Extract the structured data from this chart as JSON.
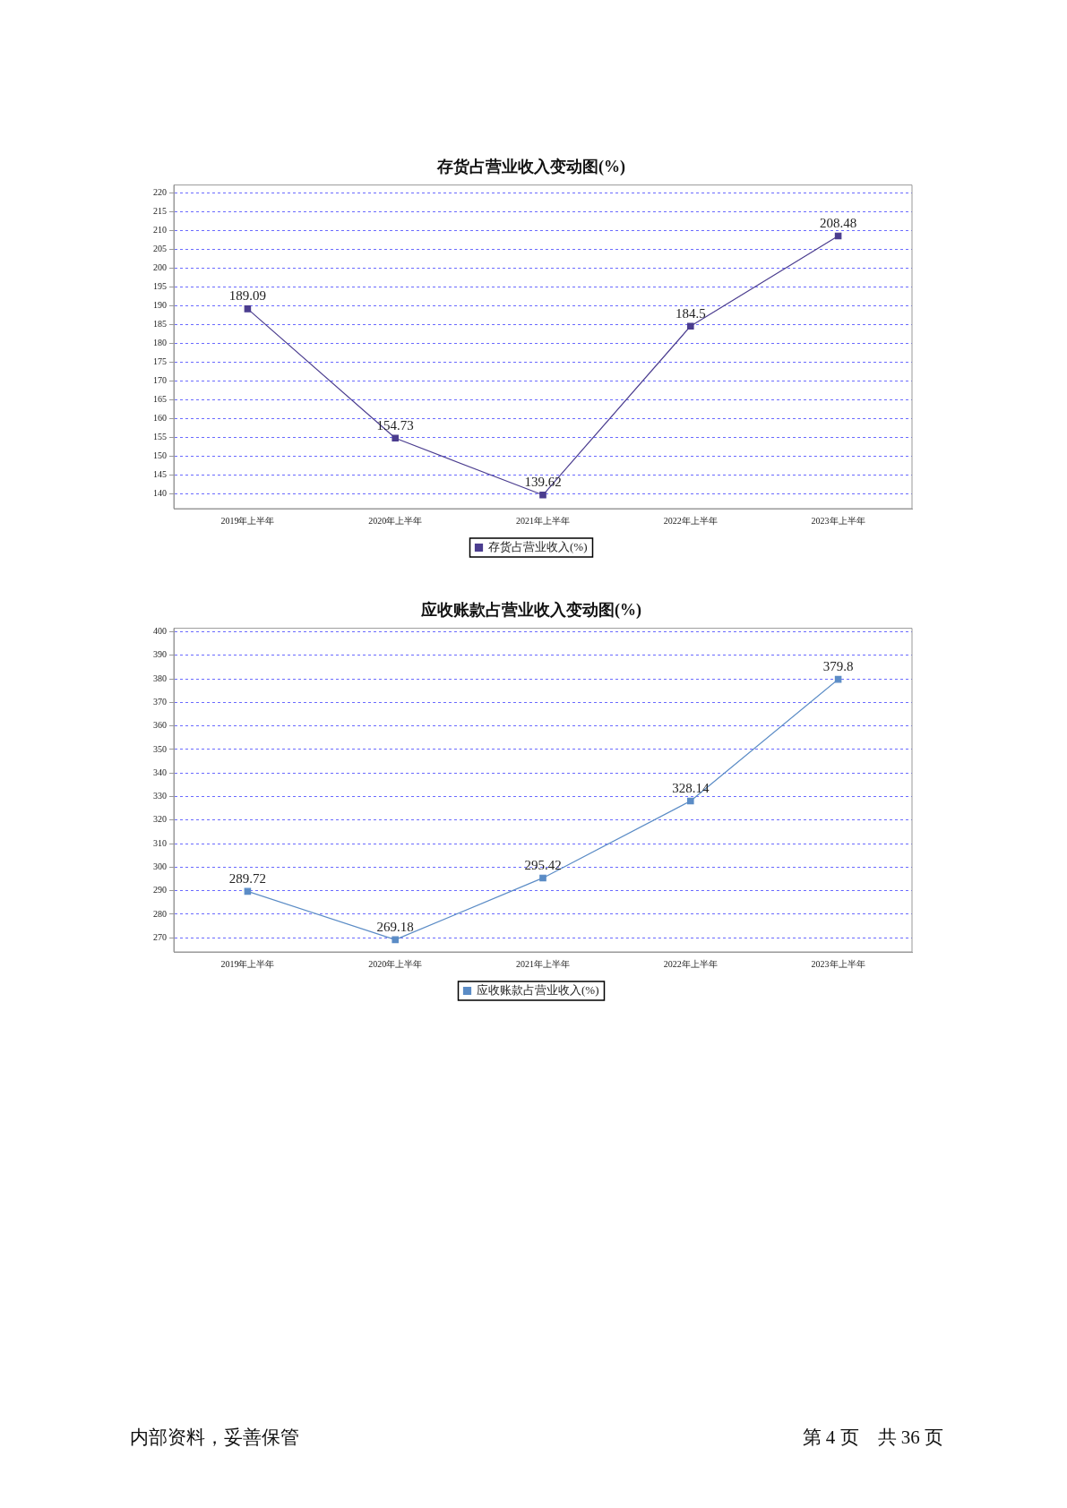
{
  "chart_data": [
    {
      "type": "line",
      "title": "存货占营业收入变动图(%)",
      "categories": [
        "2019年上半年",
        "2020年上半年",
        "2021年上半年",
        "2022年上半年",
        "2023年上半年"
      ],
      "series": [
        {
          "name": "存货占营业收入(%)",
          "color": "#4b3d8f",
          "values": [
            189.09,
            154.73,
            139.62,
            184.5,
            208.48
          ]
        }
      ],
      "ylim": [
        136,
        222
      ],
      "yticks": [
        140,
        145,
        150,
        155,
        160,
        165,
        170,
        175,
        180,
        185,
        190,
        195,
        200,
        205,
        210,
        215,
        220
      ],
      "grid": "y",
      "legend": "bottom",
      "marker": "square",
      "line_style": "solid",
      "data_labels": true
    },
    {
      "type": "line",
      "title": "应收账款占营业收入变动图(%)",
      "categories": [
        "2019年上半年",
        "2020年上半年",
        "2021年上半年",
        "2022年上半年",
        "2023年上半年"
      ],
      "series": [
        {
          "name": "应收账款占营业收入(%)",
          "color": "#5b8cc6",
          "values": [
            289.72,
            269.18,
            295.42,
            328.14,
            379.8
          ]
        }
      ],
      "ylim": [
        264,
        401.5
      ],
      "yticks": [
        270,
        280,
        290,
        300,
        310,
        320,
        330,
        340,
        350,
        360,
        370,
        380,
        390,
        400
      ],
      "grid": "y",
      "legend": "bottom",
      "marker": "square",
      "line_style": "solid",
      "data_labels": true,
      "annotations": [
        "内部资料，妥善保管",
        "第 4 页　共 36 页"
      ]
    }
  ]
}
